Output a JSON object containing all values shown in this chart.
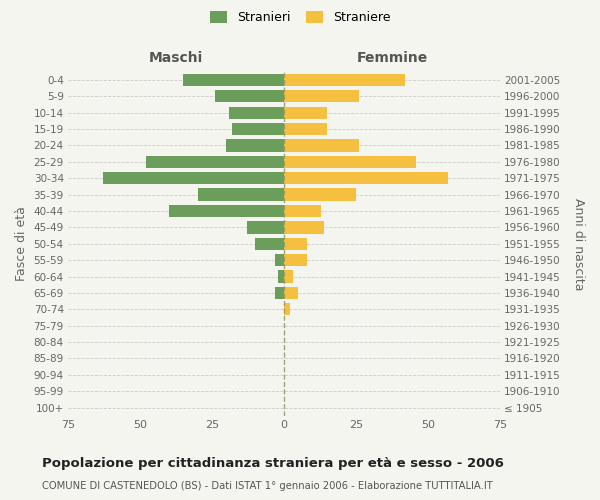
{
  "age_groups": [
    "100+",
    "95-99",
    "90-94",
    "85-89",
    "80-84",
    "75-79",
    "70-74",
    "65-69",
    "60-64",
    "55-59",
    "50-54",
    "45-49",
    "40-44",
    "35-39",
    "30-34",
    "25-29",
    "20-24",
    "15-19",
    "10-14",
    "5-9",
    "0-4"
  ],
  "birth_years": [
    "≤ 1905",
    "1906-1910",
    "1911-1915",
    "1916-1920",
    "1921-1925",
    "1926-1930",
    "1931-1935",
    "1936-1940",
    "1941-1945",
    "1946-1950",
    "1951-1955",
    "1956-1960",
    "1961-1965",
    "1966-1970",
    "1971-1975",
    "1976-1980",
    "1981-1985",
    "1986-1990",
    "1991-1995",
    "1996-2000",
    "2001-2005"
  ],
  "males": [
    0,
    0,
    0,
    0,
    0,
    0,
    0,
    3,
    2,
    3,
    10,
    13,
    40,
    30,
    63,
    48,
    20,
    18,
    19,
    24,
    35
  ],
  "females": [
    0,
    0,
    0,
    0,
    0,
    0,
    2,
    5,
    3,
    8,
    8,
    14,
    13,
    25,
    57,
    46,
    26,
    15,
    15,
    26,
    42
  ],
  "male_color": "#6a9e5a",
  "female_color": "#f5c040",
  "background_color": "#f5f5f0",
  "grid_color": "#cccccc",
  "title": "Popolazione per cittadinanza straniera per età e sesso - 2006",
  "subtitle": "COMUNE DI CASTENEDOLO (BS) - Dati ISTAT 1° gennaio 2006 - Elaborazione TUTTITALIA.IT",
  "ylabel_left": "Fasce di età",
  "ylabel_right": "Anni di nascita",
  "header_left": "Maschi",
  "header_right": "Femmine",
  "legend_male": "Stranieri",
  "legend_female": "Straniere",
  "xlim": 75
}
